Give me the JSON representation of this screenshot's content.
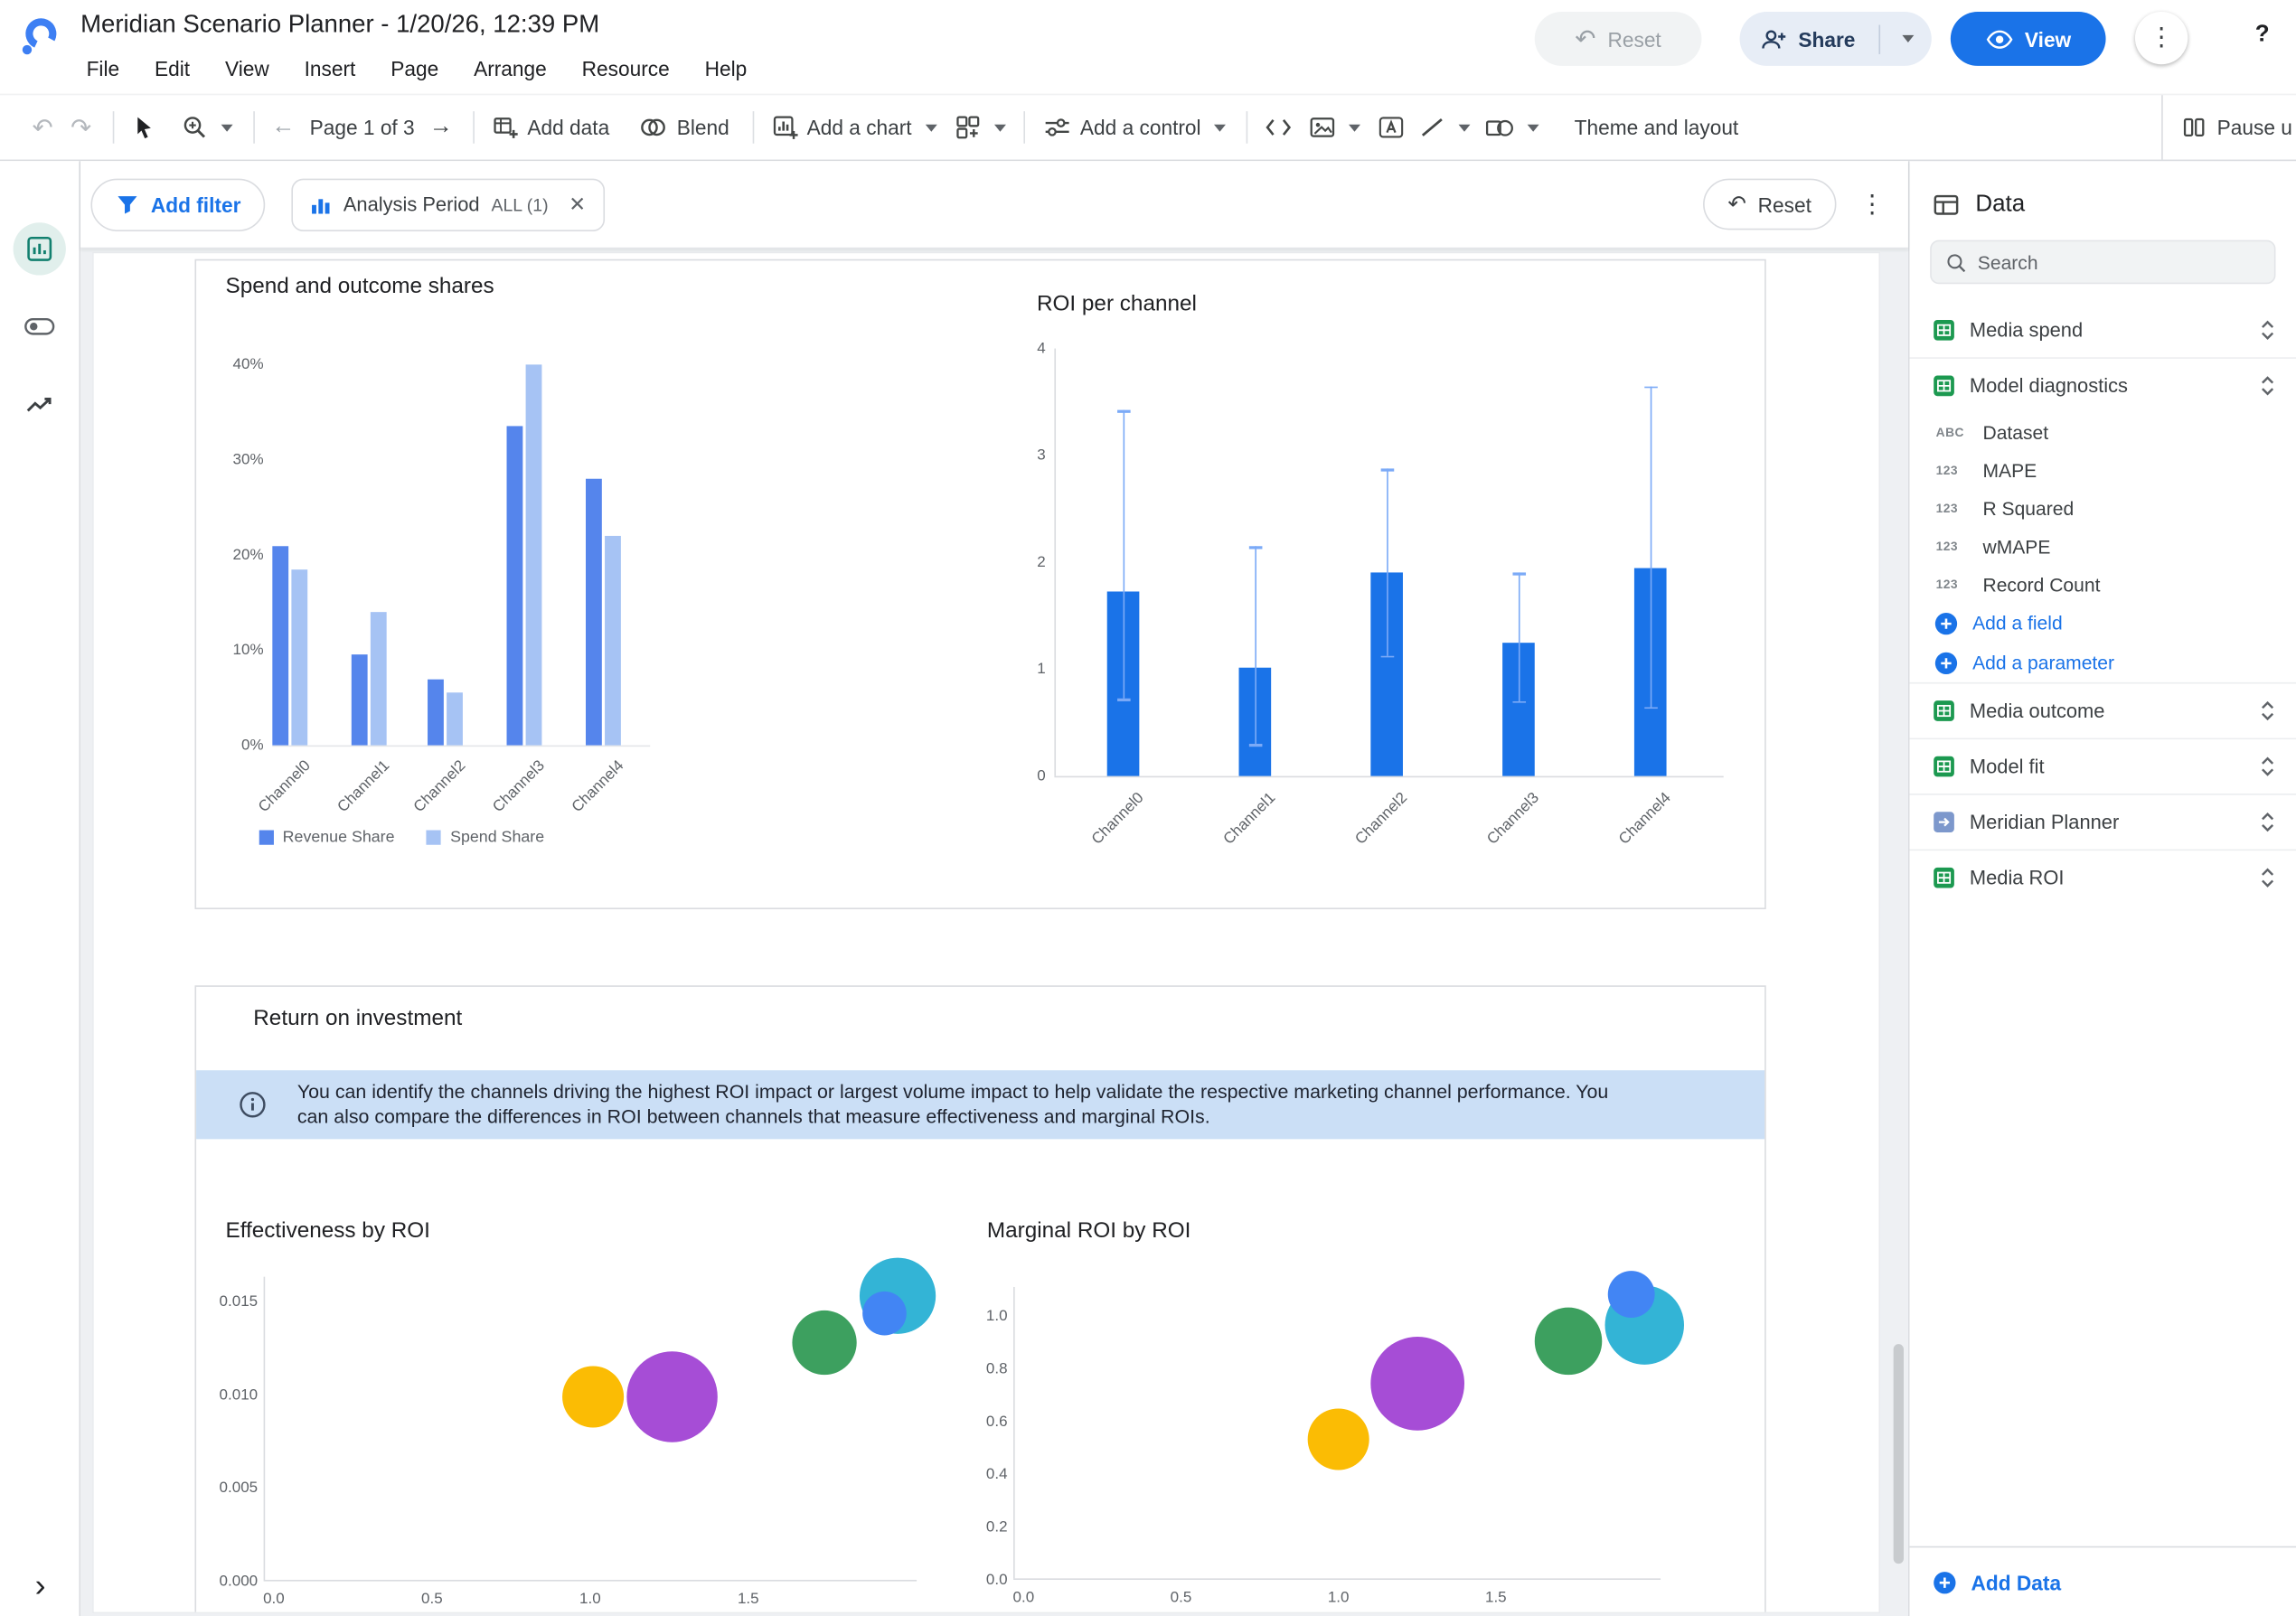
{
  "app": {
    "title": "Meridian Scenario Planner - 1/20/26, 12:39 PM",
    "menus": [
      "File",
      "Edit",
      "View",
      "Insert",
      "Page",
      "Arrange",
      "Resource",
      "Help"
    ],
    "actions": {
      "reset": "Reset",
      "share": "Share",
      "view": "View",
      "help": "?"
    }
  },
  "toolbar": {
    "page_indicator": "Page 1 of 3",
    "add_data": "Add data",
    "blend": "Blend",
    "add_chart": "Add a chart",
    "add_control": "Add a control",
    "theme_layout": "Theme and layout",
    "pause": "Pause u"
  },
  "filter_bar": {
    "add_filter": "Add filter",
    "filter_chip": {
      "label": "Analysis Period",
      "value": "ALL (1)",
      "remove": "✕"
    },
    "reset": "Reset"
  },
  "data_panel": {
    "title": "Data",
    "search_placeholder": "Search",
    "sources": [
      {
        "name": "Media spend",
        "icon": "sheets"
      },
      {
        "name": "Model diagnostics",
        "icon": "sheets",
        "expanded": true,
        "fields": [
          {
            "type": "ABC",
            "name": "Dataset"
          },
          {
            "type": "123",
            "name": "MAPE"
          },
          {
            "type": "123",
            "name": "R Squared"
          },
          {
            "type": "123",
            "name": "wMAPE"
          },
          {
            "type": "123",
            "name": "Record Count"
          }
        ],
        "actions": [
          "Add a field",
          "Add a parameter"
        ]
      },
      {
        "name": "Media outcome",
        "icon": "sheets"
      },
      {
        "name": "Model fit",
        "icon": "sheets"
      },
      {
        "name": "Meridian Planner",
        "icon": "planner"
      },
      {
        "name": "Media ROI",
        "icon": "sheets"
      }
    ],
    "add_data": "Add Data"
  },
  "report": {
    "section_title": "Return on investment",
    "info_banner": "You can identify the channels driving the highest ROI impact or largest volume impact to help validate the respective marketing channel performance. You can also compare the differences in ROI between channels that measure effectiveness and marginal ROIs."
  },
  "colors": {
    "accent": "#1a73e8",
    "banner_bg": "#cbdff6"
  },
  "chart_data": [
    {
      "type": "bar",
      "title": "Spend and outcome shares",
      "categories": [
        "Channel0",
        "Channel1",
        "Channel2",
        "Channel3",
        "Channel4"
      ],
      "series": [
        {
          "name": "Revenue Share",
          "color": "#5585ec",
          "values": [
            21,
            9.5,
            7,
            33.5,
            28
          ]
        },
        {
          "name": "Spend Share",
          "color": "#a6c3f4",
          "values": [
            18.5,
            14,
            5.5,
            40,
            22
          ]
        }
      ],
      "y_ticks": [
        0,
        10,
        20,
        30,
        40
      ],
      "y_tick_labels": [
        "0%",
        "10%",
        "20%",
        "30%",
        "40%"
      ],
      "ylim": [
        0,
        40
      ],
      "legend_position": "bottom"
    },
    {
      "type": "bar",
      "title": "ROI per channel",
      "categories": [
        "Channel0",
        "Channel1",
        "Channel2",
        "Channel3",
        "Channel4"
      ],
      "series": [
        {
          "name": "ROI",
          "color": "#1a73e8",
          "values": [
            1.72,
            1.02,
            1.9,
            1.25,
            1.95
          ]
        }
      ],
      "error_bars": {
        "low": [
          0.72,
          0.3,
          1.13,
          0.7,
          0.65
        ],
        "high": [
          3.42,
          2.15,
          2.87,
          1.9,
          3.65
        ],
        "color": "#7baaf7"
      },
      "y_ticks": [
        0,
        1,
        2,
        3,
        4
      ],
      "y_tick_labels": [
        "0",
        "1",
        "2",
        "3",
        "4"
      ],
      "ylim": [
        0,
        4
      ]
    },
    {
      "type": "scatter",
      "title": "Effectiveness by ROI",
      "x_ticks": [
        0,
        0.5,
        1,
        1.5
      ],
      "x_tick_labels": [
        "0.0",
        "0.5",
        "1.0",
        "1.5"
      ],
      "y_ticks": [
        0,
        0.005,
        0.01,
        0.015
      ],
      "y_tick_labels": [
        "0.000",
        "0.005",
        "0.010",
        "0.015"
      ],
      "xlim": [
        0,
        2.1
      ],
      "ylim": [
        0,
        0.0162
      ],
      "points": [
        {
          "x": 1.01,
          "y": 0.0098,
          "r": 21,
          "color": "#fbbc04"
        },
        {
          "x": 1.26,
          "y": 0.0098,
          "r": 31,
          "color": "#a64dd6"
        },
        {
          "x": 1.74,
          "y": 0.0127,
          "r": 22,
          "color": "#3da05f"
        },
        {
          "x": 1.97,
          "y": 0.0152,
          "r": 26,
          "color": "#33b4d6"
        },
        {
          "x": 1.93,
          "y": 0.0143,
          "r": 15,
          "color": "#4285f4"
        }
      ]
    },
    {
      "type": "scatter",
      "title": "Marginal ROI by ROI",
      "x_ticks": [
        0,
        0.5,
        1,
        1.5
      ],
      "x_tick_labels": [
        "0.0",
        "0.5",
        "1.0",
        "1.5"
      ],
      "y_ticks": [
        0,
        0.2,
        0.4,
        0.6,
        0.8,
        1.0
      ],
      "y_tick_labels": [
        "0.0",
        "0.2",
        "0.4",
        "0.6",
        "0.8",
        "1.0"
      ],
      "xlim": [
        0,
        2.1
      ],
      "ylim": [
        0,
        1.21
      ],
      "points": [
        {
          "x": 1.0,
          "y": 0.53,
          "r": 21,
          "color": "#fbbc04"
        },
        {
          "x": 1.25,
          "y": 0.74,
          "r": 32,
          "color": "#a64dd6"
        },
        {
          "x": 1.73,
          "y": 0.9,
          "r": 23,
          "color": "#3da05f"
        },
        {
          "x": 1.97,
          "y": 0.96,
          "r": 27,
          "color": "#33b4d6"
        },
        {
          "x": 1.93,
          "y": 1.08,
          "r": 16,
          "color": "#4285f4"
        }
      ]
    }
  ]
}
